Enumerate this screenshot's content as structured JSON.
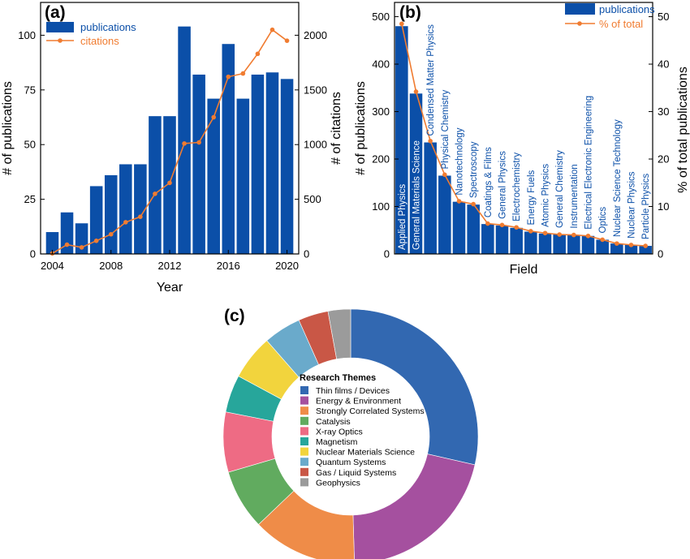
{
  "chart_data": [
    {
      "panel_label": "(a)",
      "type": "bar",
      "xlabel": "Year",
      "ylabel": "# of publications",
      "y2label": "# of citations",
      "x_ticks": [
        "2004",
        "2008",
        "2012",
        "2016",
        "2020"
      ],
      "y_ticks": [
        "0",
        "25",
        "50",
        "75",
        "100"
      ],
      "y2_ticks": [
        "0",
        "500",
        "1000",
        "1500",
        "2000"
      ],
      "xlim": [
        2003.2,
        2020.8
      ],
      "ylim": [
        0,
        115
      ],
      "y2lim": [
        0,
        2300
      ],
      "legend_position": "top-left",
      "series": [
        {
          "name": "publications",
          "kind": "bar",
          "color": "#0b4fa8",
          "x": [
            2004,
            2005,
            2006,
            2007,
            2008,
            2009,
            2010,
            2011,
            2012,
            2013,
            2014,
            2015,
            2016,
            2017,
            2018,
            2019,
            2020
          ],
          "values": [
            10,
            19,
            14,
            31,
            36,
            41,
            41,
            63,
            63,
            104,
            82,
            71,
            96,
            71,
            82,
            83,
            80
          ]
        },
        {
          "name": "citations",
          "kind": "line",
          "axis": "right",
          "color": "#f07c31",
          "x": [
            2004,
            2005,
            2006,
            2007,
            2008,
            2009,
            2010,
            2011,
            2012,
            2013,
            2014,
            2015,
            2016,
            2017,
            2018,
            2019,
            2020
          ],
          "values": [
            5,
            85,
            60,
            120,
            180,
            290,
            340,
            550,
            650,
            1010,
            1020,
            1250,
            1620,
            1650,
            1830,
            2050,
            1950
          ]
        }
      ]
    },
    {
      "panel_label": "(b)",
      "type": "bar",
      "xlabel": "Field",
      "ylabel": "# of publications",
      "y2label": "% of total publications",
      "y_ticks": [
        "0",
        "100",
        "200",
        "300",
        "400",
        "500"
      ],
      "y2_ticks": [
        "0",
        "10",
        "20",
        "30",
        "40",
        "50"
      ],
      "ylim": [
        0,
        530
      ],
      "y2lim": [
        0,
        53
      ],
      "legend_position": "top-right",
      "categories": [
        "Applied Physics",
        "General Materials Science",
        "Condensed Matter Physics",
        "Physical Chemistry",
        "Nanotechnology",
        "Spectroscopy",
        "Coatings & Films",
        "General Physics",
        "Electrochemistry",
        "Energy Fuels",
        "Atomic Physics",
        "General Chemistry",
        "Instrumentation",
        "Electrical Electronic Engineering",
        "Optics",
        "Nuclear Science Technology",
        "Nuclear Physics",
        "Particle Physics"
      ],
      "series": [
        {
          "name": "publications",
          "kind": "bar",
          "color": "#0b4fa8",
          "values": [
            480,
            338,
            235,
            165,
            110,
            104,
            63,
            60,
            55,
            47,
            43,
            41,
            40,
            38,
            30,
            22,
            19,
            17
          ]
        },
        {
          "name": "% of total",
          "kind": "line",
          "axis": "right",
          "color": "#f07c31",
          "values": [
            48.5,
            34.2,
            23.8,
            16.7,
            11.1,
            10.5,
            6.4,
            6.1,
            5.6,
            4.8,
            4.4,
            4.1,
            4.0,
            3.8,
            3.0,
            2.2,
            1.9,
            1.7
          ]
        }
      ]
    },
    {
      "panel_label": "(c)",
      "type": "pie",
      "donut": true,
      "legend_title": "Research Themes",
      "legend_position": "center",
      "categories": [
        "Thin films / Devices",
        "Energy & Environment",
        "Strongly Correlated Systems",
        "Catalysis",
        "X-ray Optics",
        "Magnetism",
        "Nuclear Materials Science",
        "Quantum Systems",
        "Gas / Liquid Systems",
        "Geophysics"
      ],
      "values": [
        30,
        22,
        14,
        8,
        8,
        5,
        6,
        5,
        4,
        3
      ],
      "colors": [
        "#3268b1",
        "#a5509f",
        "#ef8c48",
        "#61ab5f",
        "#ee6b84",
        "#27a69b",
        "#f2d43d",
        "#6aaacb",
        "#c95746",
        "#9b9b9b"
      ]
    }
  ]
}
